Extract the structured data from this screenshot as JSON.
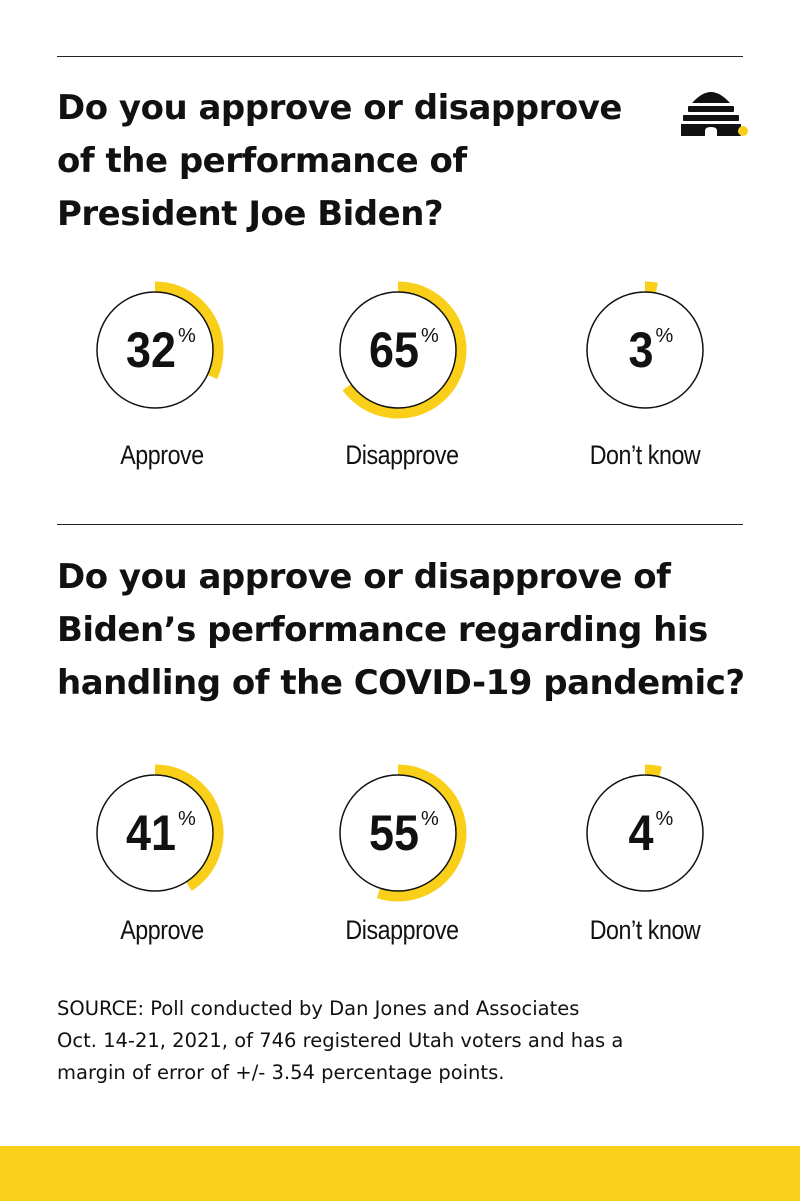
{
  "colors": {
    "accent": "#FACF1A",
    "ink": "#111111"
  },
  "logo": {
    "icon": "beehive-logo-icon"
  },
  "chart_data": [
    {
      "type": "donut",
      "title": "Do you approve or disapprove of the performance of President Joe Biden?",
      "title_lines": [
        "Do you approve or disapprove",
        "of the performance of",
        "President Joe Biden?"
      ],
      "unit": "%",
      "categories": [
        "Approve",
        "Disapprove",
        "Don’t know"
      ],
      "values": [
        32,
        65,
        3
      ]
    },
    {
      "type": "donut",
      "title": "Do you approve or disapprove of Biden’s performance regarding his handling of the COVID-19 pandemic?",
      "title_lines": [
        "Do you approve or disapprove of",
        "Biden’s performance regarding his",
        "handling of the COVID-19 pandemic?"
      ],
      "unit": "%",
      "categories": [
        "Approve",
        "Disapprove",
        "Don’t know"
      ],
      "values": [
        41,
        55,
        4
      ]
    }
  ],
  "source": {
    "lines": [
      "SOURCE: Poll conducted by Dan Jones and Associates",
      "Oct. 14-21, 2021, of 746 registered Utah voters and has a",
      "margin of error of +/- 3.54 percentage points."
    ]
  }
}
